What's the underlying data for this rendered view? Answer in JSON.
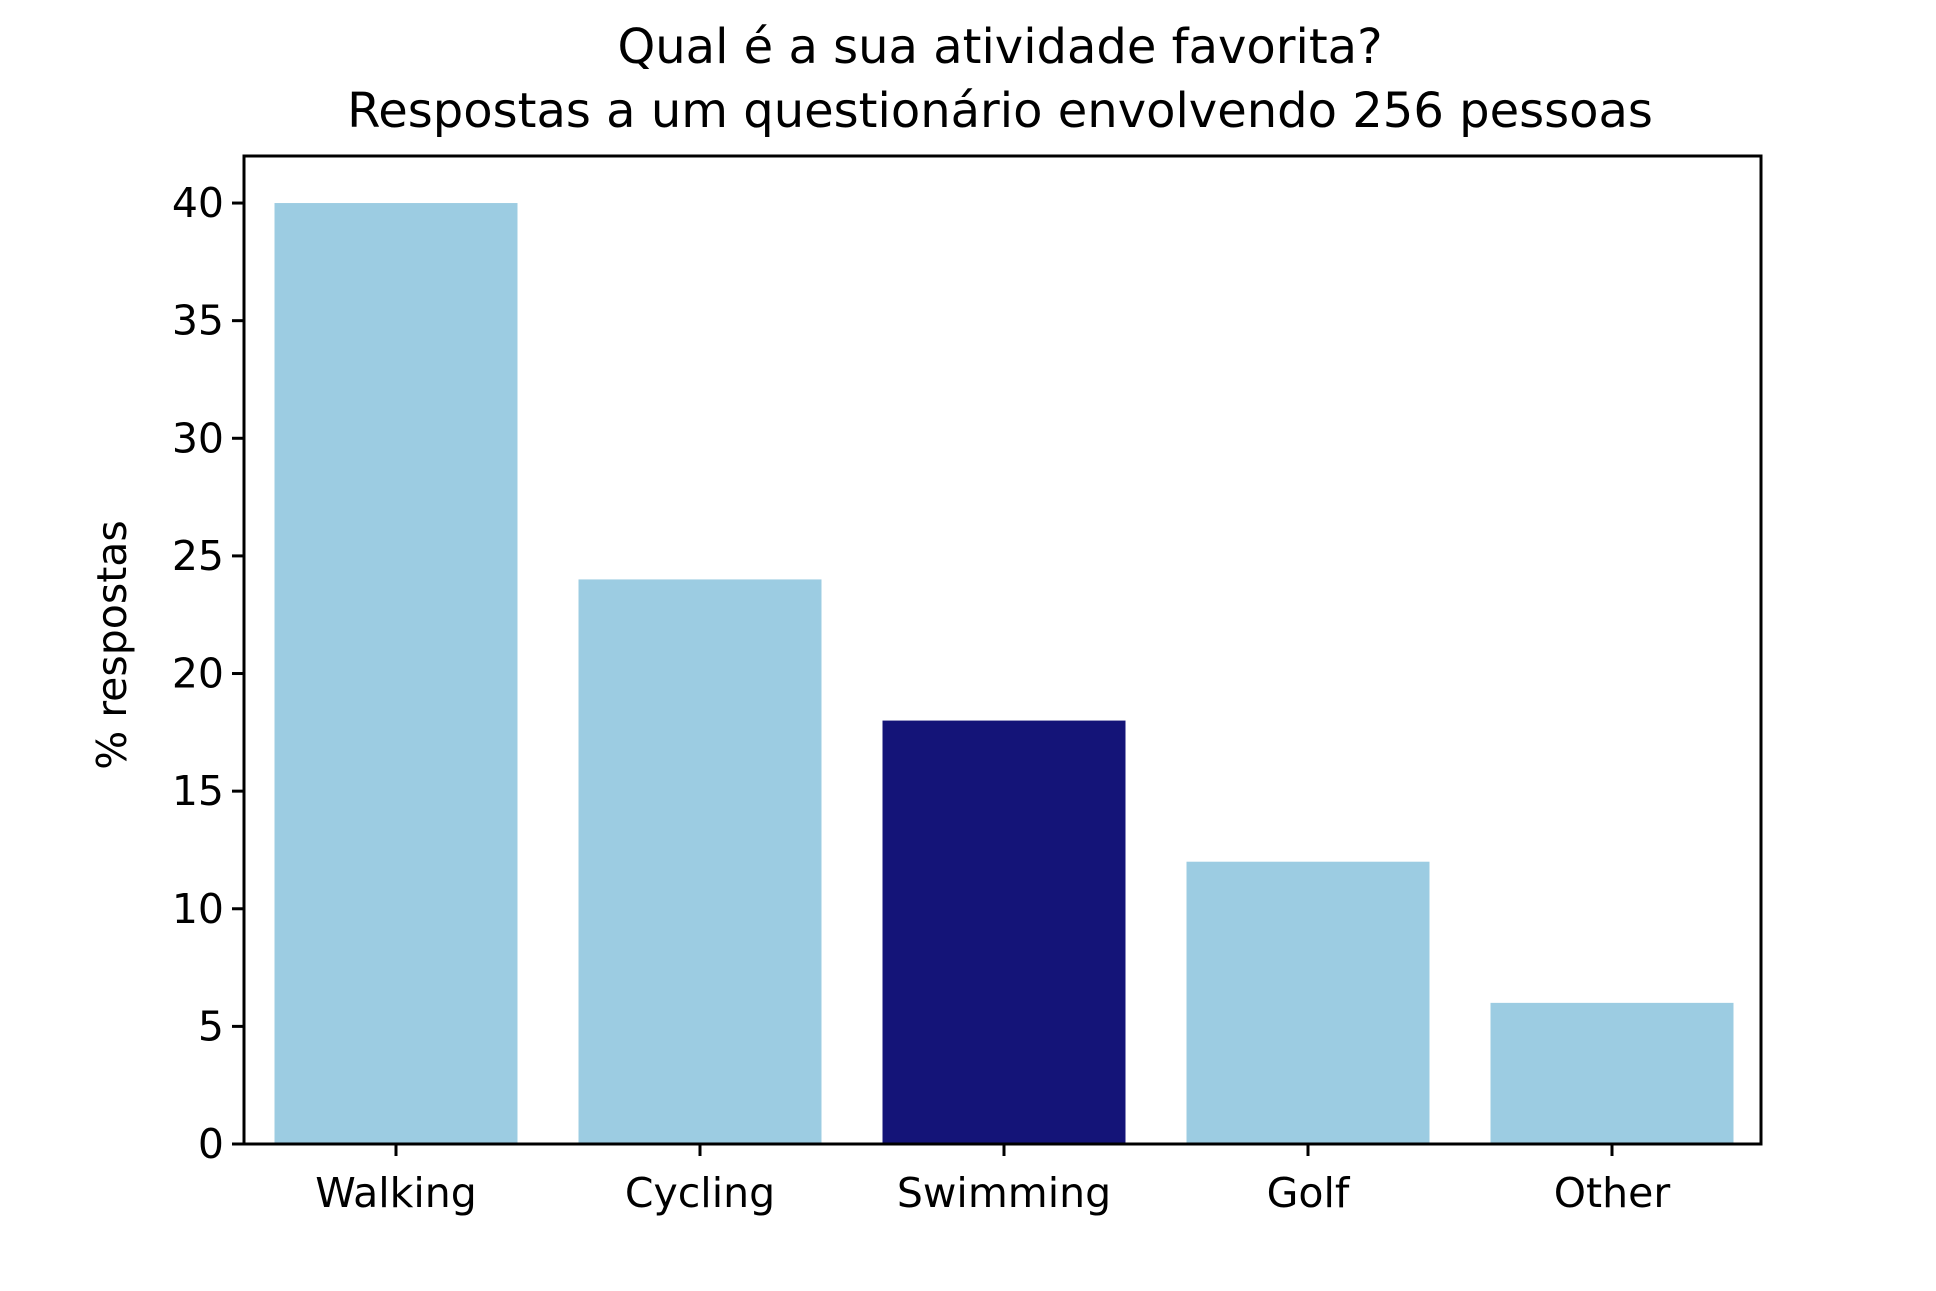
{
  "chart_data": {
    "type": "bar",
    "title": "Qual é a sua atividade favorita?",
    "subtitle": "Respostas a um questionário envolvendo 256 pessoas",
    "xlabel": "",
    "ylabel": "% respostas",
    "categories": [
      "Walking",
      "Cycling",
      "Swimming",
      "Golf",
      "Other"
    ],
    "values": [
      40,
      24,
      18,
      12,
      6
    ],
    "colors": [
      "#9ccce2",
      "#9ccce2",
      "#141478",
      "#9ccce2",
      "#9ccce2"
    ],
    "highlighted_category": "Swimming",
    "ylim": [
      0,
      42
    ],
    "yticks": [
      0,
      5,
      10,
      15,
      20,
      25,
      30,
      35,
      40
    ],
    "grid": false,
    "legend": "none"
  }
}
